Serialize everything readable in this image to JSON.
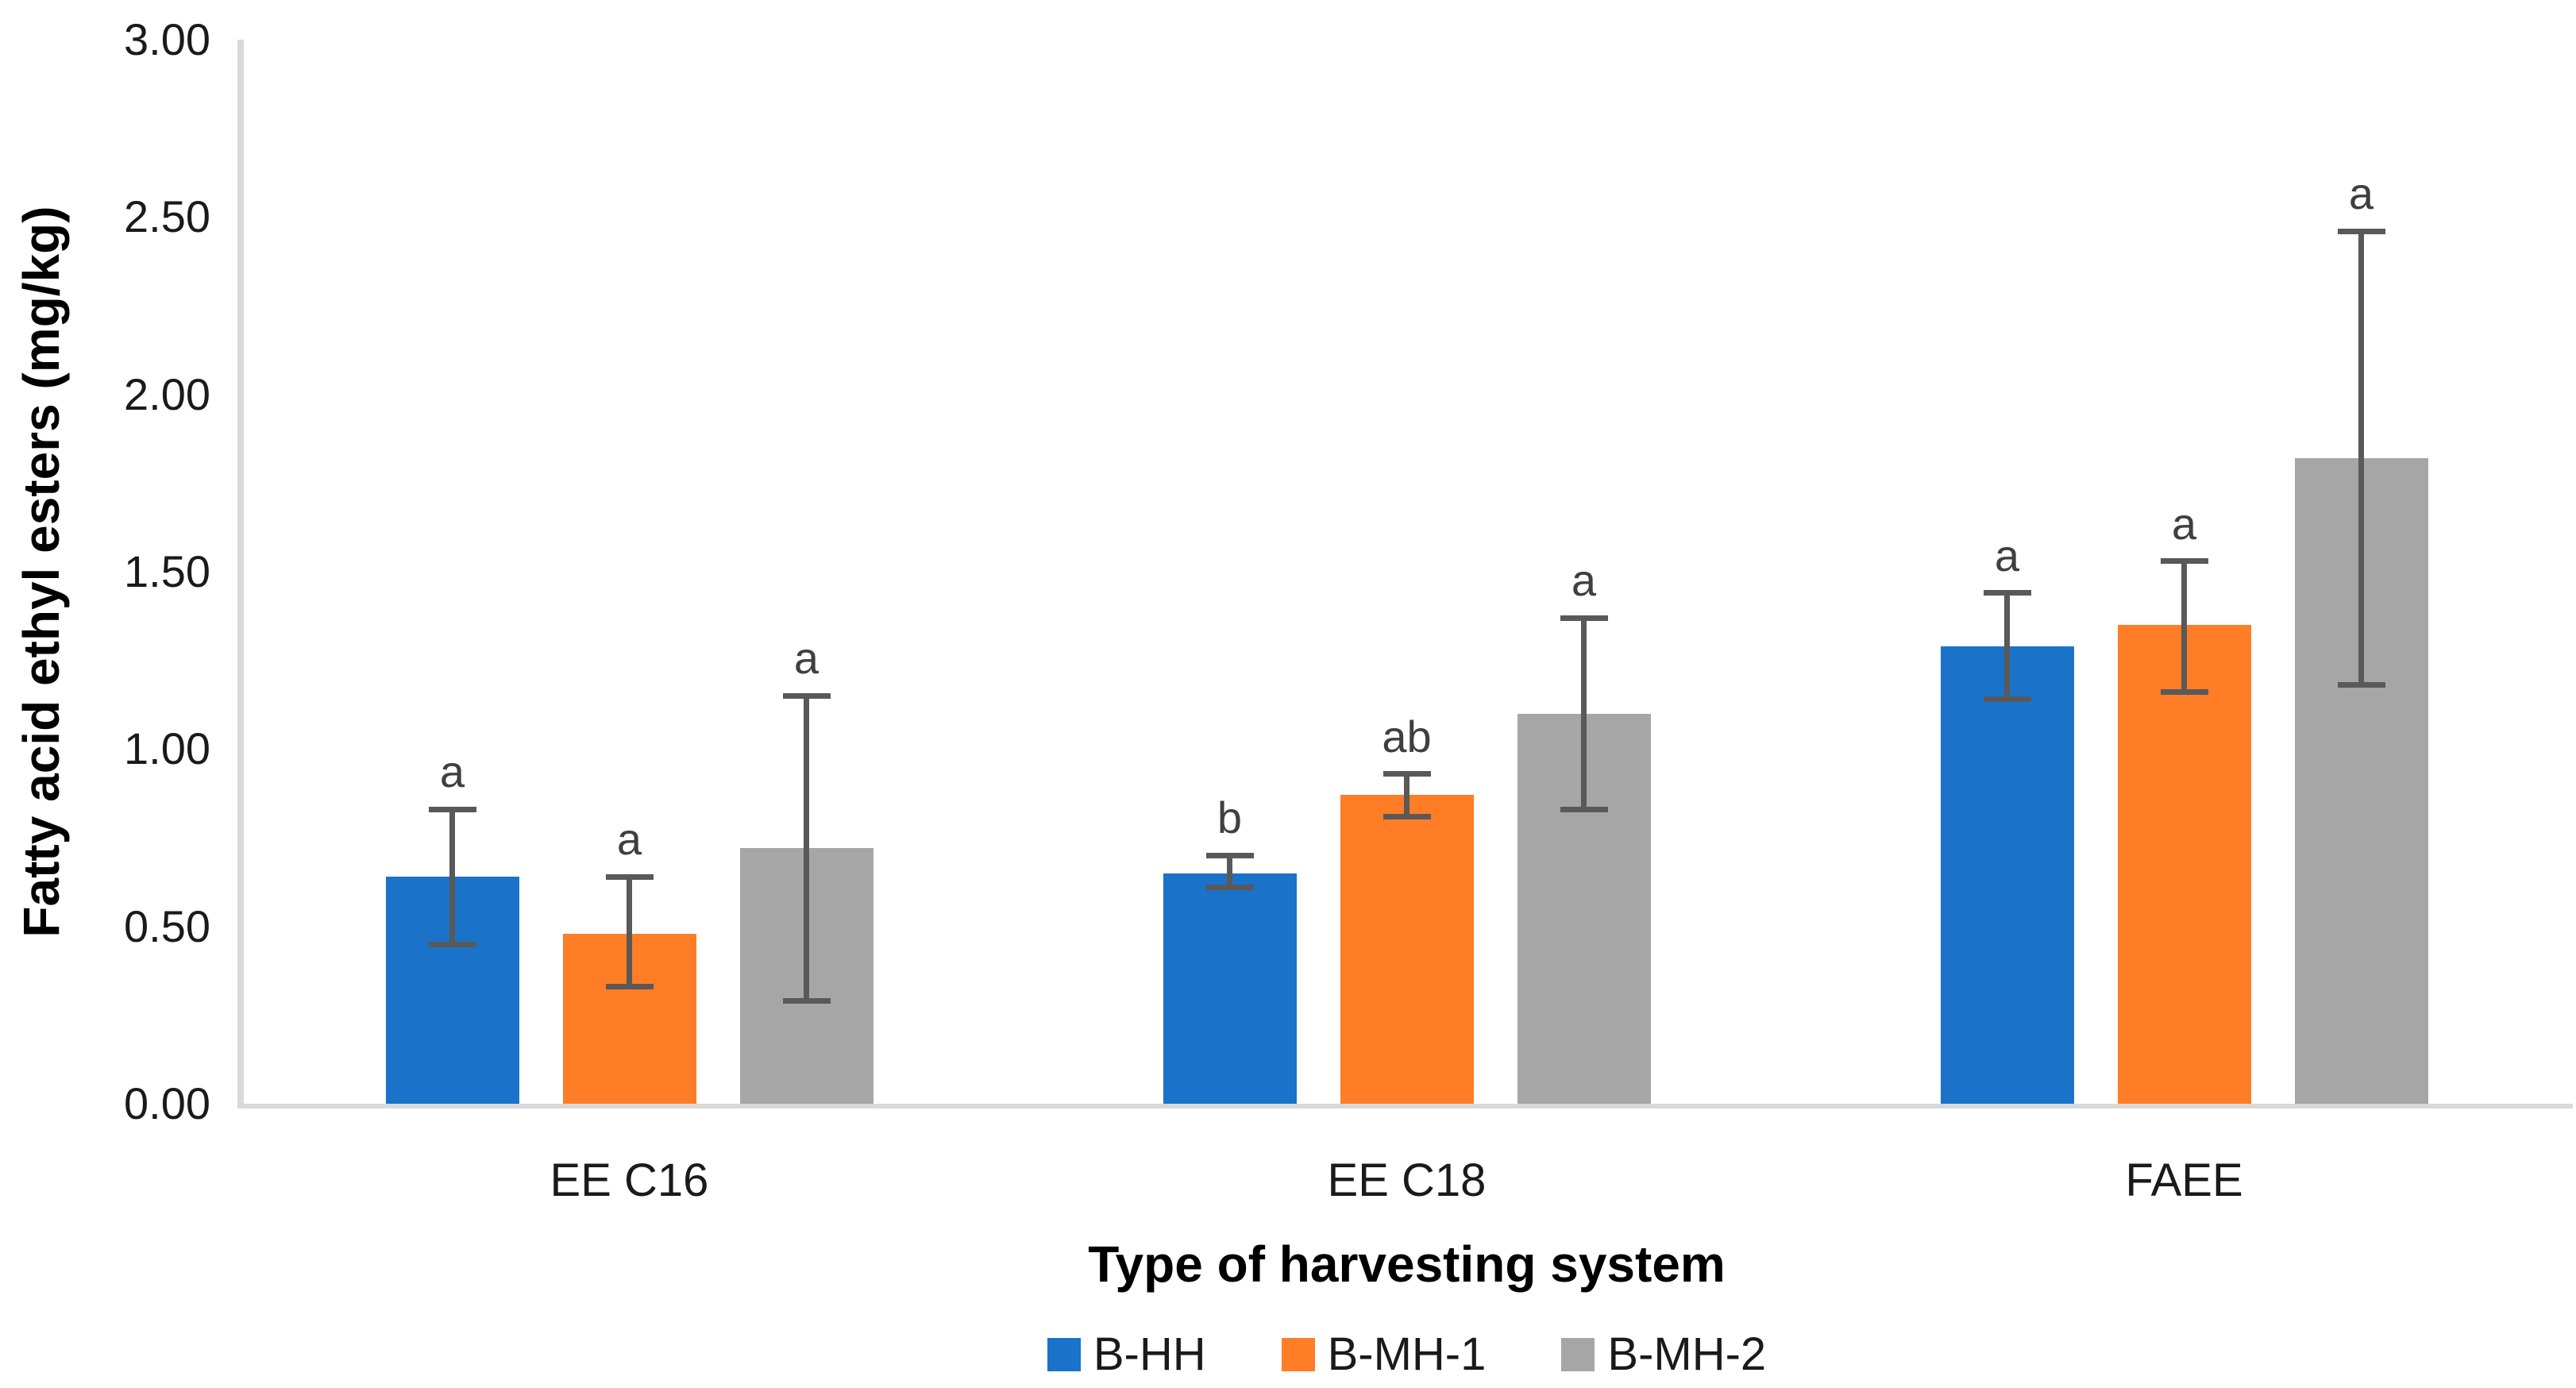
{
  "chart_data": {
    "type": "bar",
    "title": "",
    "xlabel": "Type of harvesting system",
    "ylabel": "Fatty acid ethyl esters (mg/kg)",
    "categories": [
      "EE C16",
      "EE C18",
      "FAEE"
    ],
    "series": [
      {
        "name": "B-HH",
        "color": "#1A73C8",
        "values": [
          0.64,
          0.65,
          1.29
        ],
        "err_low": [
          0.45,
          0.61,
          1.14
        ],
        "err_high": [
          0.83,
          0.7,
          1.44
        ],
        "letters": [
          "a",
          "b",
          "a"
        ]
      },
      {
        "name": "B-MH-1",
        "color": "#FF7D27",
        "values": [
          0.48,
          0.87,
          1.35
        ],
        "err_low": [
          0.33,
          0.81,
          1.16
        ],
        "err_high": [
          0.64,
          0.93,
          1.53
        ],
        "letters": [
          "a",
          "ab",
          "a"
        ]
      },
      {
        "name": "B-MH-2",
        "color": "#A6A6A6",
        "values": [
          0.72,
          1.1,
          1.82
        ],
        "err_low": [
          0.29,
          0.83,
          1.18
        ],
        "err_high": [
          1.15,
          1.37,
          2.46
        ],
        "letters": [
          "a",
          "a",
          "a"
        ]
      }
    ],
    "ylim": [
      0,
      3
    ],
    "ytick_values": [
      0,
      0.5,
      1,
      1.5,
      2,
      2.5,
      3
    ],
    "ytick_labels": [
      "0.00",
      "0.50",
      "1.00",
      "1.50",
      "2.00",
      "2.50",
      "3.00"
    ],
    "grid": false,
    "legend_position": "bottom",
    "style": {
      "error_bar_color": "#595959",
      "letter_color": "#3F3F3F",
      "axis_line_color": "#D9D9D9",
      "background": "#FFFFFF"
    }
  }
}
